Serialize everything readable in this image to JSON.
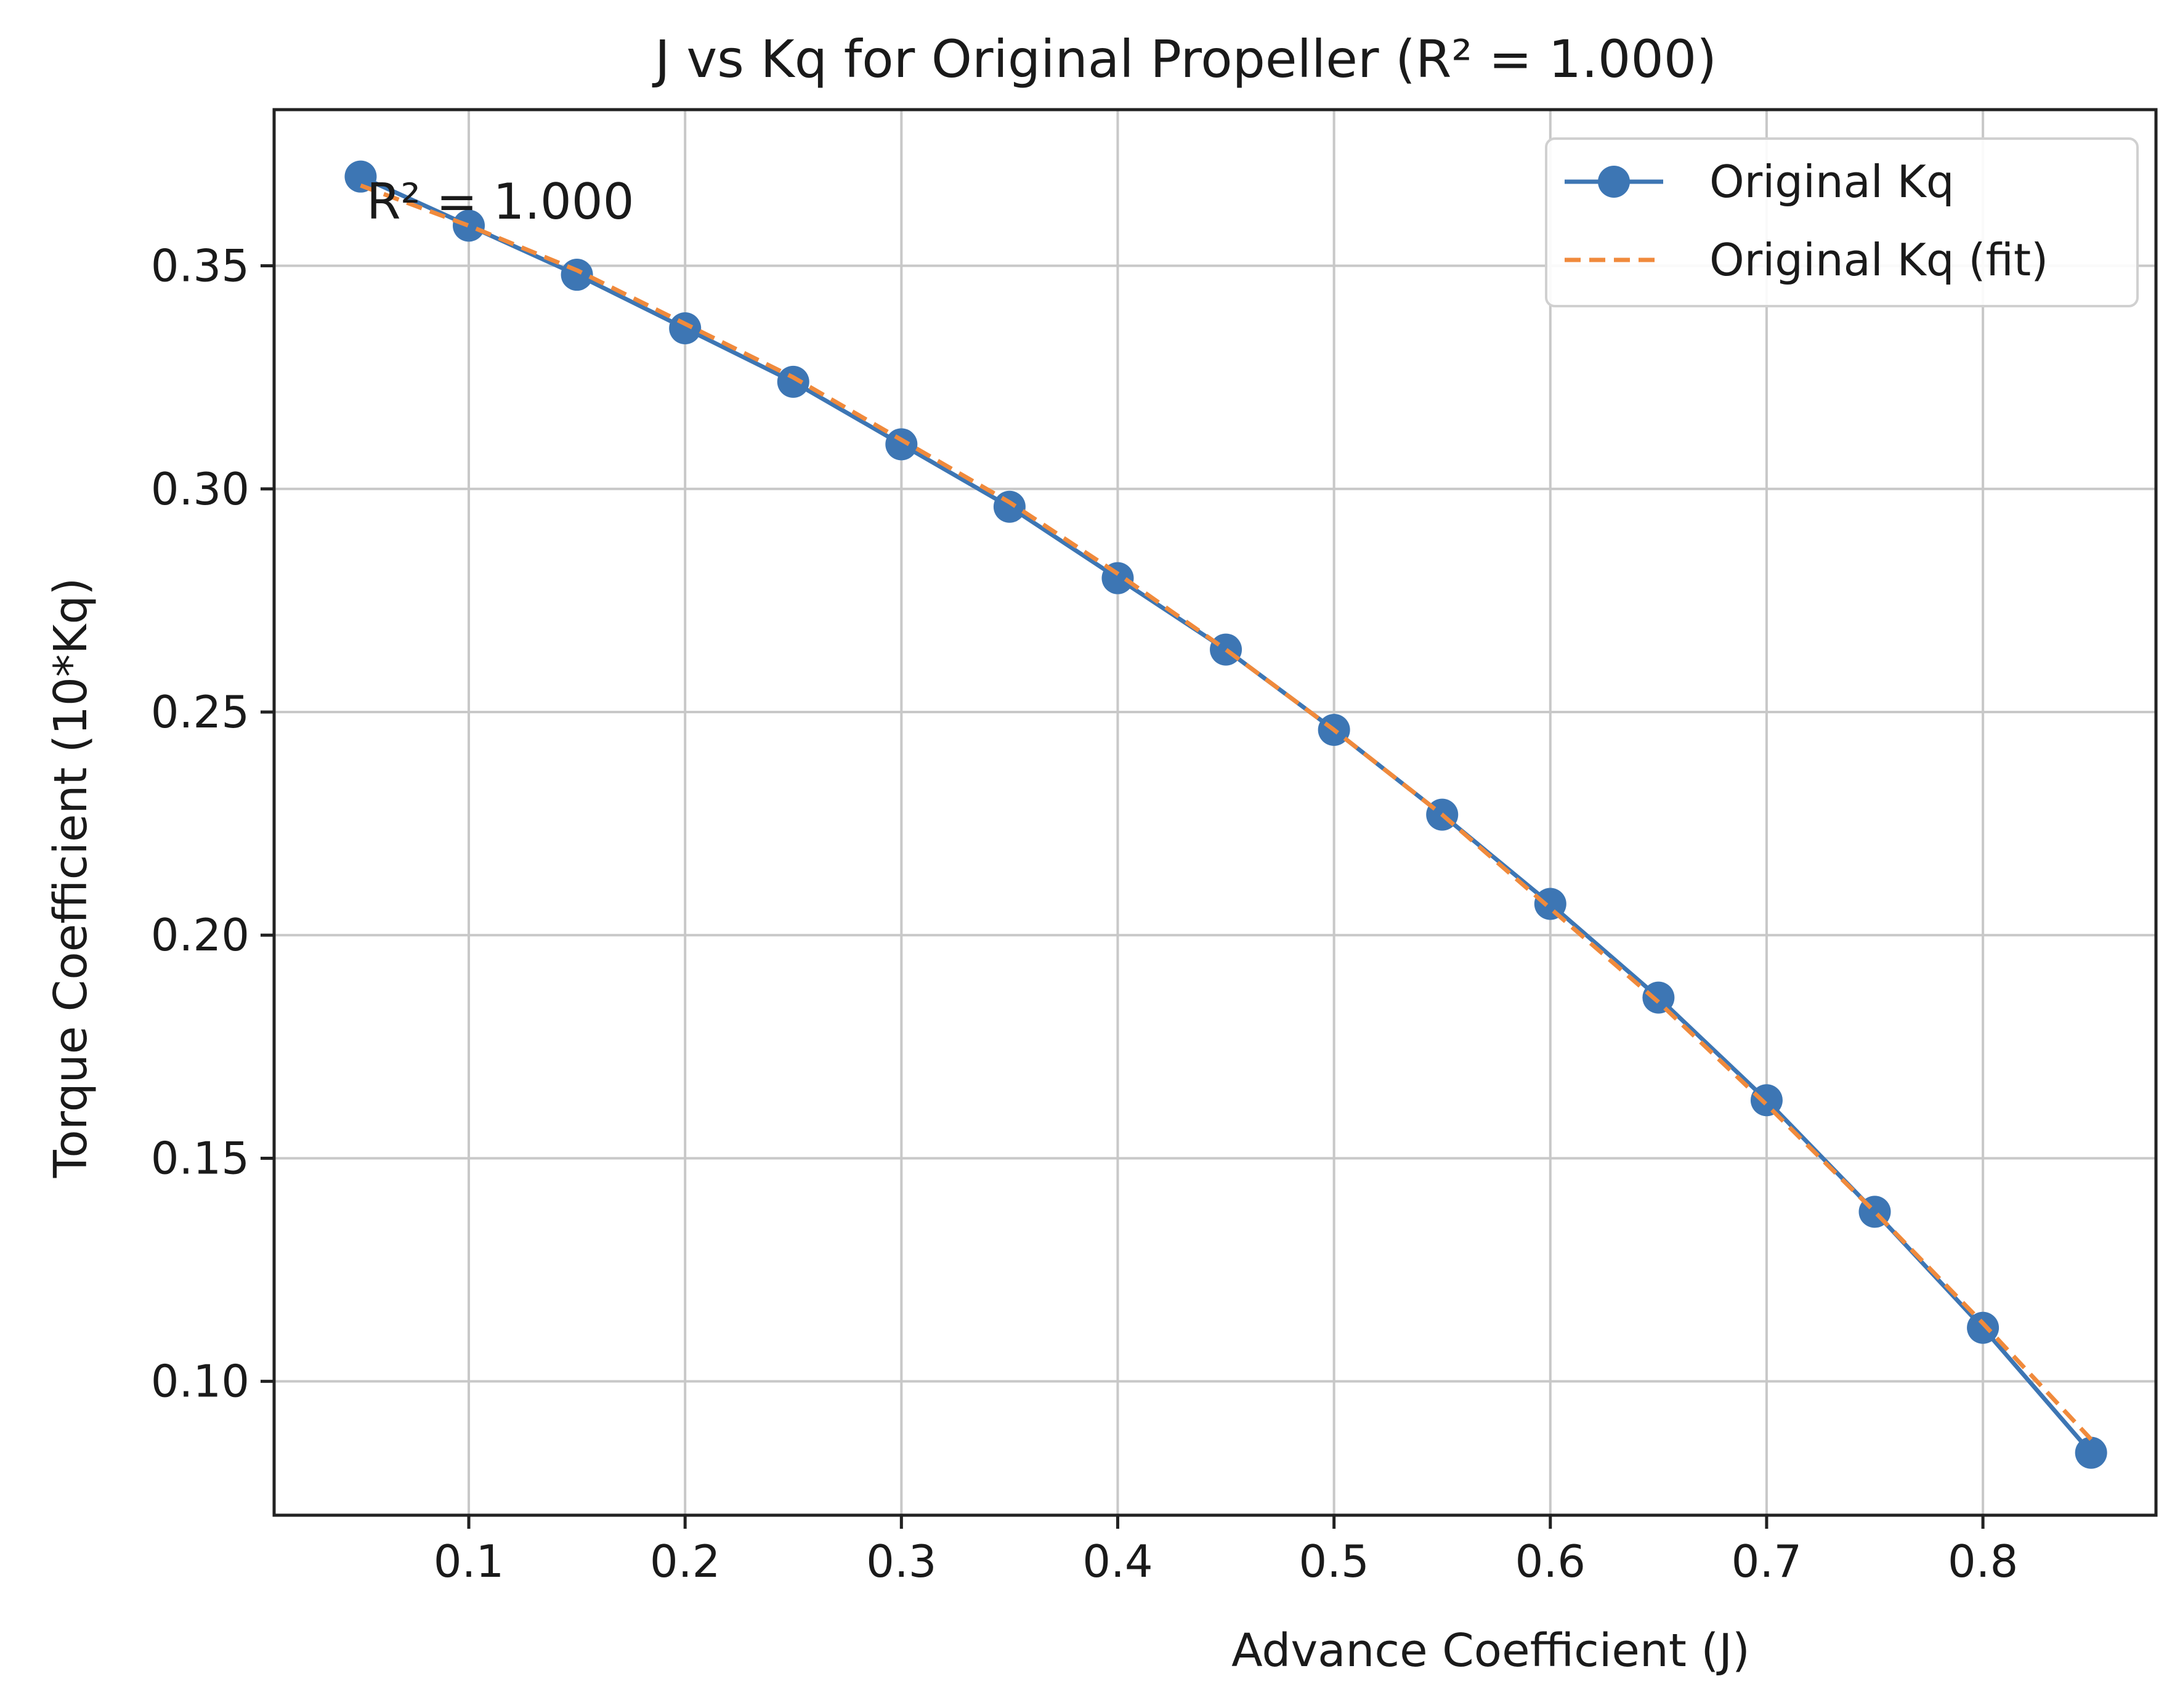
{
  "chart_data": {
    "type": "line",
    "title": "J vs Kq for Original Propeller (R² = 1.000)",
    "xlabel": "Advance Coefficient (J)",
    "ylabel": "Torque Coefficient (10*Kq)",
    "xlim": [
      0.01,
      0.88
    ],
    "ylim": [
      0.07,
      0.385
    ],
    "xticks": [
      0.1,
      0.2,
      0.3,
      0.4,
      0.5,
      0.6,
      0.7,
      0.8
    ],
    "xtick_labels": [
      "0.1",
      "0.2",
      "0.3",
      "0.4",
      "0.5",
      "0.6",
      "0.7",
      "0.8"
    ],
    "yticks": [
      0.1,
      0.15,
      0.2,
      0.25,
      0.3,
      0.35
    ],
    "ytick_labels": [
      "0.10",
      "0.15",
      "0.20",
      "0.25",
      "0.30",
      "0.35"
    ],
    "grid": true,
    "legend_position": "top-right",
    "annotation": "R² = 1.000",
    "series": [
      {
        "name": "Original Kq",
        "style": "solid line with circle markers",
        "color": "#3d76b4",
        "x": [
          0.05,
          0.1,
          0.15,
          0.2,
          0.25,
          0.3,
          0.35,
          0.4,
          0.45,
          0.5,
          0.55,
          0.6,
          0.65,
          0.7,
          0.75,
          0.8,
          0.85
        ],
        "y": [
          0.37,
          0.359,
          0.348,
          0.336,
          0.324,
          0.31,
          0.296,
          0.28,
          0.264,
          0.246,
          0.227,
          0.207,
          0.186,
          0.163,
          0.138,
          0.112,
          0.084
        ]
      },
      {
        "name": "Original Kq (fit)",
        "style": "dashed line",
        "color": "#f08a3c",
        "x": [
          0.05,
          0.1,
          0.15,
          0.2,
          0.25,
          0.3,
          0.35,
          0.4,
          0.45,
          0.5,
          0.55,
          0.6,
          0.65,
          0.7,
          0.75,
          0.8,
          0.85
        ],
        "y": [
          0.368,
          0.359,
          0.349,
          0.337,
          0.325,
          0.311,
          0.297,
          0.281,
          0.264,
          0.246,
          0.227,
          0.206,
          0.185,
          0.162,
          0.138,
          0.113,
          0.087
        ]
      }
    ]
  }
}
